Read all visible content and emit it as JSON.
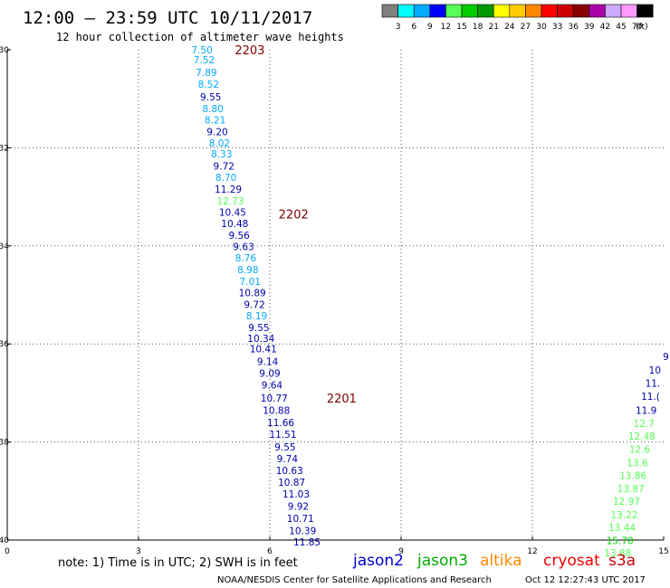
{
  "header": {
    "title": "12:00 – 23:59 UTC 10/11/2017",
    "subtitle": "12 hour collection of altimeter wave heights"
  },
  "colors": {
    "axis": "#000000",
    "grid": "#555555",
    "track_label": "#800000"
  },
  "colorbar": {
    "unit": "(ft)",
    "swatches": [
      {
        "color": "#808080",
        "label": "3"
      },
      {
        "color": "#00ffff",
        "label": "6"
      },
      {
        "color": "#00aaff",
        "label": "9"
      },
      {
        "color": "#0000ff",
        "label": "12"
      },
      {
        "color": "#55ff55",
        "label": "15"
      },
      {
        "color": "#00cc00",
        "label": "18"
      },
      {
        "color": "#009900",
        "label": "21"
      },
      {
        "color": "#ffff00",
        "label": "24"
      },
      {
        "color": "#ffcc00",
        "label": "27"
      },
      {
        "color": "#ff8800",
        "label": "30"
      },
      {
        "color": "#ff0000",
        "label": "33"
      },
      {
        "color": "#cc0000",
        "label": "36"
      },
      {
        "color": "#880000",
        "label": "39"
      },
      {
        "color": "#aa00aa",
        "label": "42"
      },
      {
        "color": "#ccaaff",
        "label": "45"
      },
      {
        "color": "#ff99ff",
        "label": "70"
      },
      {
        "color": "#000000",
        "label": ""
      }
    ]
  },
  "chart_data": {
    "type": "scatter",
    "x_ticks": [
      "0",
      "3",
      "6",
      "9",
      "12",
      "15"
    ],
    "y_ticks": [
      "-30",
      "-32",
      "-34",
      "-36",
      "-38",
      "-40"
    ],
    "xlim": [
      0,
      15
    ],
    "ylim": [
      -40,
      -30
    ],
    "grid": true,
    "track_labels": [
      {
        "text": "2203",
        "x": 5.2,
        "y": -30.0
      },
      {
        "text": "2202",
        "x": 6.2,
        "y": -33.35
      },
      {
        "text": "2201",
        "x": 7.3,
        "y": -37.1
      }
    ],
    "series": [
      {
        "name": "jason2",
        "points": [
          {
            "x": 4.45,
            "y": -30.0,
            "v": "7.50",
            "color": "#00aaff"
          },
          {
            "x": 4.5,
            "y": -30.2,
            "v": "7.52",
            "color": "#00aaff"
          },
          {
            "x": 4.55,
            "y": -30.46,
            "v": "7.89",
            "color": "#00aaff"
          },
          {
            "x": 4.6,
            "y": -30.7,
            "v": "8.52",
            "color": "#00aaff"
          },
          {
            "x": 4.65,
            "y": -30.96,
            "v": "9.55",
            "color": "#0000aa"
          },
          {
            "x": 4.7,
            "y": -31.2,
            "v": "8.80",
            "color": "#00aaff"
          },
          {
            "x": 4.75,
            "y": -31.43,
            "v": "8.21",
            "color": "#00aaff"
          },
          {
            "x": 4.8,
            "y": -31.67,
            "v": "9.20",
            "color": "#0000aa"
          },
          {
            "x": 4.85,
            "y": -31.9,
            "v": "8.02",
            "color": "#00aaff"
          },
          {
            "x": 4.9,
            "y": -32.12,
            "v": "8.33",
            "color": "#00aaff"
          },
          {
            "x": 4.95,
            "y": -32.37,
            "v": "9.72",
            "color": "#0000aa"
          },
          {
            "x": 5.0,
            "y": -32.6,
            "v": "8.70",
            "color": "#00aaff"
          },
          {
            "x": 5.05,
            "y": -32.84,
            "v": "11.29",
            "color": "#0000aa"
          },
          {
            "x": 5.1,
            "y": -33.08,
            "v": "12.73",
            "color": "#55ff55"
          },
          {
            "x": 5.15,
            "y": -33.31,
            "v": "10.45",
            "color": "#0000aa"
          },
          {
            "x": 5.2,
            "y": -33.54,
            "v": "10.48",
            "color": "#0000aa"
          },
          {
            "x": 5.3,
            "y": -33.78,
            "v": "9.56",
            "color": "#0000aa"
          },
          {
            "x": 5.4,
            "y": -34.01,
            "v": "9.63",
            "color": "#0000aa"
          },
          {
            "x": 5.45,
            "y": -34.24,
            "v": "8.76",
            "color": "#00aaff"
          },
          {
            "x": 5.5,
            "y": -34.48,
            "v": "8.98",
            "color": "#00aaff"
          },
          {
            "x": 5.55,
            "y": -34.72,
            "v": "7.01",
            "color": "#00aaff"
          },
          {
            "x": 5.6,
            "y": -34.95,
            "v": "10.89",
            "color": "#0000aa"
          },
          {
            "x": 5.65,
            "y": -35.19,
            "v": "9.72",
            "color": "#0000aa"
          },
          {
            "x": 5.7,
            "y": -35.42,
            "v": "8.19",
            "color": "#00aaff"
          },
          {
            "x": 5.75,
            "y": -35.66,
            "v": "9.55",
            "color": "#0000aa"
          },
          {
            "x": 5.8,
            "y": -35.89,
            "v": "10.34",
            "color": "#0000aa"
          },
          {
            "x": 5.85,
            "y": -36.1,
            "v": "10.41",
            "color": "#0000aa"
          },
          {
            "x": 5.95,
            "y": -36.36,
            "v": "9.14",
            "color": "#0000aa"
          },
          {
            "x": 6.0,
            "y": -36.6,
            "v": "9.09",
            "color": "#0000aa"
          },
          {
            "x": 6.05,
            "y": -36.84,
            "v": "9.64",
            "color": "#0000aa"
          },
          {
            "x": 6.1,
            "y": -37.1,
            "v": "10.77",
            "color": "#0000aa"
          },
          {
            "x": 6.15,
            "y": -37.35,
            "v": "10.88",
            "color": "#0000aa"
          },
          {
            "x": 6.25,
            "y": -37.6,
            "v": "11.66",
            "color": "#0000aa"
          },
          {
            "x": 6.3,
            "y": -37.84,
            "v": "11.51",
            "color": "#0000aa"
          },
          {
            "x": 6.35,
            "y": -38.1,
            "v": "9.55",
            "color": "#0000aa"
          },
          {
            "x": 6.4,
            "y": -38.34,
            "v": "9.74",
            "color": "#0000aa"
          },
          {
            "x": 6.45,
            "y": -38.58,
            "v": "10.63",
            "color": "#0000aa"
          },
          {
            "x": 6.5,
            "y": -38.82,
            "v": "10.87",
            "color": "#0000aa"
          },
          {
            "x": 6.6,
            "y": -39.06,
            "v": "11.03",
            "color": "#0000aa"
          },
          {
            "x": 6.65,
            "y": -39.31,
            "v": "9.92",
            "color": "#0000aa"
          },
          {
            "x": 6.7,
            "y": -39.56,
            "v": "10.71",
            "color": "#0000aa"
          },
          {
            "x": 6.75,
            "y": -39.81,
            "v": "10.39",
            "color": "#0000aa"
          },
          {
            "x": 6.85,
            "y": -40.04,
            "v": "11.85",
            "color": "#0000aa"
          },
          {
            "x": 15.05,
            "y": -36.25,
            "v": "9",
            "color": "#0000aa"
          },
          {
            "x": 14.8,
            "y": -36.53,
            "v": "10",
            "color": "#0000aa"
          },
          {
            "x": 14.75,
            "y": -36.8,
            "v": "11.",
            "color": "#0000aa"
          },
          {
            "x": 14.7,
            "y": -37.07,
            "v": "11.(",
            "color": "#0000aa"
          },
          {
            "x": 14.6,
            "y": -37.35,
            "v": "11.9",
            "color": "#0000aa"
          }
        ]
      },
      {
        "name": "jason3",
        "points": [
          {
            "x": 14.55,
            "y": -37.62,
            "v": "12.7",
            "color": "#55ff55"
          },
          {
            "x": 14.5,
            "y": -37.88,
            "v": "12.48",
            "color": "#55ff55"
          },
          {
            "x": 14.45,
            "y": -38.15,
            "v": "12.6",
            "color": "#55ff55"
          },
          {
            "x": 14.4,
            "y": -38.42,
            "v": "13.6",
            "color": "#55ff55"
          },
          {
            "x": 14.3,
            "y": -38.68,
            "v": "13.86",
            "color": "#55ff55"
          },
          {
            "x": 14.25,
            "y": -38.95,
            "v": "13.87",
            "color": "#55ff55"
          },
          {
            "x": 14.15,
            "y": -39.21,
            "v": "12.97",
            "color": "#55ff55"
          },
          {
            "x": 14.1,
            "y": -39.48,
            "v": "13.22",
            "color": "#55ff55"
          },
          {
            "x": 14.05,
            "y": -39.74,
            "v": "13.44",
            "color": "#55ff55"
          },
          {
            "x": 14.0,
            "y": -40.01,
            "v": "15.70",
            "color": "#00cc00"
          },
          {
            "x": 13.95,
            "y": -40.26,
            "v": "13.88",
            "color": "#55ff55"
          }
        ]
      }
    ]
  },
  "footer": {
    "note": "note: 1) Time is in UTC; 2) SWH is in feet",
    "legend": [
      {
        "label": "jason2",
        "color": "#0000cc"
      },
      {
        "label": "jason3",
        "color": "#00aa00"
      },
      {
        "label": "altika",
        "color": "#ff8800"
      },
      {
        "label": "cryosat",
        "color": "#ee0000"
      },
      {
        "label": "s3a",
        "color": "#cc0000"
      }
    ],
    "credit": "NOAA/NESDIS Center for Satellite Applications and Research",
    "timestamp": "Oct 12 12:27:43 UTC 2017"
  }
}
